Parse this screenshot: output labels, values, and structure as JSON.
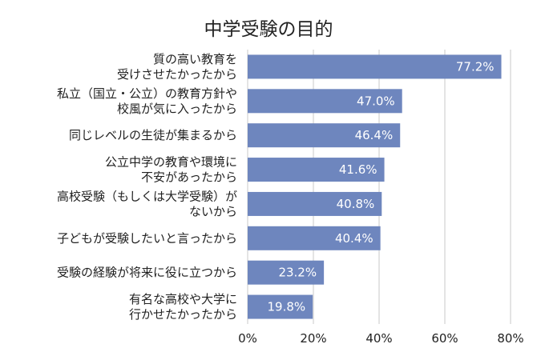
{
  "chart_data": {
    "type": "bar",
    "orientation": "horizontal",
    "title": "中学受験の目的",
    "categories": [
      [
        "質の高い教育を",
        "受けさせたかったから"
      ],
      [
        "私立（国立・公立）の教育方針や",
        "校風が気に入ったから"
      ],
      [
        "同じレベルの生徒が集まるから"
      ],
      [
        "公立中学の教育や環境に",
        "不安があったから"
      ],
      [
        "高校受験（もしくは大学受験）が",
        "ないから"
      ],
      [
        "子どもが受験したいと言ったから"
      ],
      [
        "受験の経験が将来に役に立つから"
      ],
      [
        "有名な高校や大学に",
        "行かせたかったから"
      ]
    ],
    "values": [
      77.2,
      47.0,
      46.4,
      41.6,
      40.8,
      40.4,
      23.2,
      19.8
    ],
    "value_labels": [
      "77.2%",
      "47.0%",
      "46.4%",
      "41.6%",
      "40.8%",
      "40.4%",
      "23.2%",
      "19.8%"
    ],
    "x_ticks": [
      "0%",
      "20%",
      "40%",
      "60%",
      "80%"
    ],
    "xlim": [
      0,
      80
    ],
    "grid": true,
    "legend": "none",
    "bar_color": "#6e86be",
    "grid_color": "#c9c9c9"
  }
}
